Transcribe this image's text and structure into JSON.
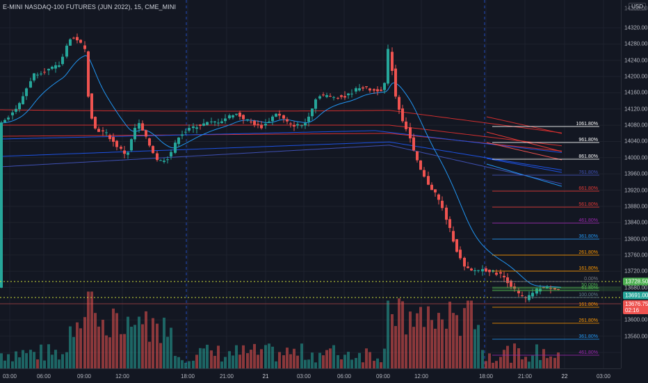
{
  "header": {
    "symbol_title": "E-MINI NASDAQ-100 FUTURES (JUN 2022), 15, CME_MINI",
    "currency": "USD"
  },
  "price_axis": {
    "ticks": [
      "14320.00",
      "14280.00",
      "14240.00",
      "14200.00",
      "14160.00",
      "14120.00",
      "14080.00",
      "14040.00",
      "14000.00",
      "13960.00",
      "13920.00",
      "13880.00",
      "13840.00",
      "13800.00",
      "13760.00",
      "13720.00",
      "13680.00",
      "13640.00",
      "13600.00",
      "13560.00"
    ],
    "top_partial": "14360.00",
    "badges": {
      "high": "13728.50",
      "prev": "13691.00",
      "last": "13676.75",
      "countdown": "02:16"
    }
  },
  "time_axis": {
    "ticks": [
      "03:00",
      "06:00",
      "09:00",
      "12:00",
      "18:00",
      "21:00",
      "21",
      "03:00",
      "06:00",
      "09:00",
      "12:00",
      "18:00",
      "21:00",
      "22",
      "03:00"
    ]
  },
  "fib_upper": [
    "1061.80%",
    "961.80%",
    "861.80%",
    "761.80%",
    "661.80%",
    "561.80%",
    "461.80%",
    "361.80%",
    "261.80%",
    "161.80%"
  ],
  "fib_lower": [
    "0.00%",
    "50.00%",
    "61.80%",
    "100.00%",
    "161.80%",
    "261.80%",
    "361.80%",
    "461.80%"
  ],
  "colors": {
    "up": "#26a69a",
    "down": "#ef5350",
    "bg": "#131722",
    "grid": "#1e222d",
    "ema_fast": "#2196f3",
    "ema_red": "#d32f2f",
    "ema_blue": "#1e53e5"
  }
}
